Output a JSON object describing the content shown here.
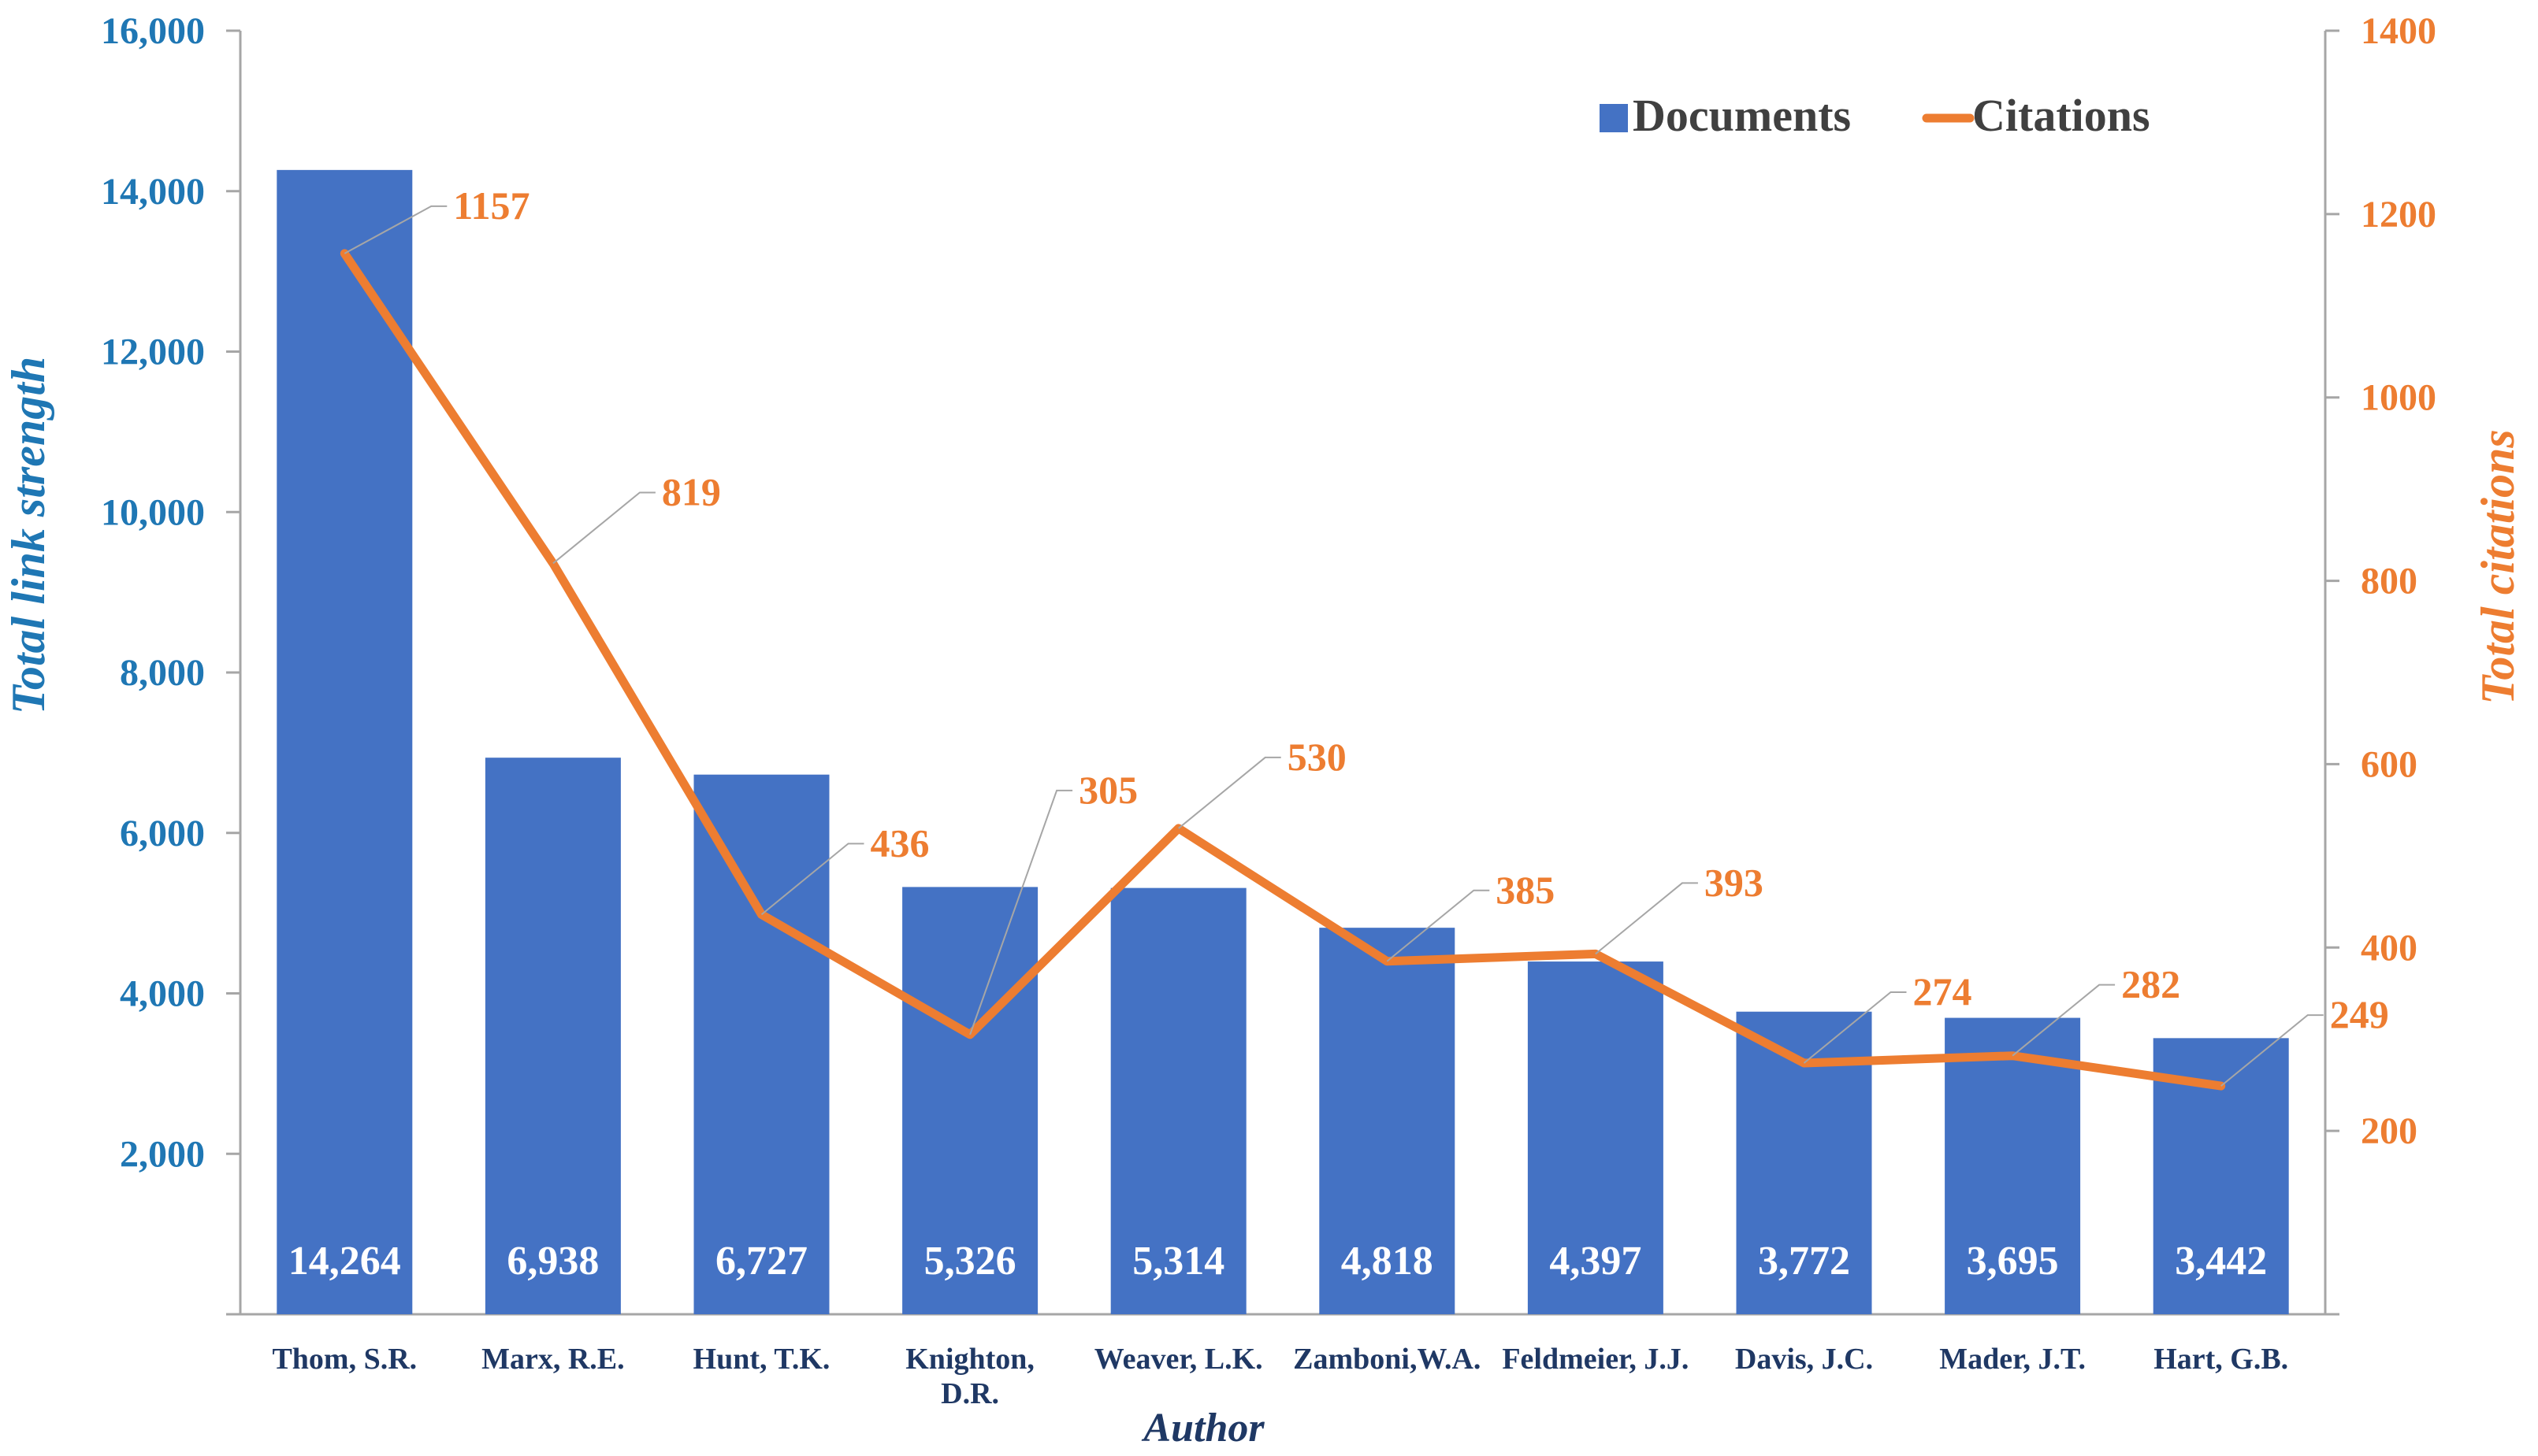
{
  "chart_data": {
    "type": "bar",
    "categories": [
      "Thom, S.R.",
      "Marx, R.E.",
      "Hunt, T.K.",
      "Knighton, D.R.",
      "Weaver, L.K.",
      "Zamboni,W.A.",
      "Feldmeier, J.J.",
      "Davis, J.C.",
      "Mader, J.T.",
      "Hart, G.B."
    ],
    "series": [
      {
        "name": "Documents",
        "type": "bar",
        "axis": "left",
        "color": "#4472C4",
        "values": [
          14264,
          6938,
          6727,
          5326,
          5314,
          4818,
          4397,
          3772,
          3695,
          3442
        ],
        "labels": [
          "14,264",
          "6,938",
          "6,727",
          "5,326",
          "5,314",
          "4,818",
          "4,397",
          "3,772",
          "3,695",
          "3,442"
        ]
      },
      {
        "name": "Citations",
        "type": "line",
        "axis": "right",
        "color": "#ED7D31",
        "values": [
          1157,
          819,
          436,
          305,
          530,
          385,
          393,
          274,
          282,
          249
        ],
        "labels": [
          "1157",
          "819",
          "436",
          "305",
          "530",
          "385",
          "393",
          "274",
          "282",
          "249"
        ]
      }
    ],
    "xlabel": "Author",
    "ylabel_left": "Total link strength",
    "ylabel_right": "Total citations",
    "ylim_left": [
      0,
      16000
    ],
    "ylim_right": [
      0,
      1400
    ],
    "yticks_left": [
      "2,000",
      "4,000",
      "6,000",
      "8,000",
      "10,000",
      "12,000",
      "14,000",
      "16,000"
    ],
    "yticks_right": [
      "200",
      "400",
      "600",
      "800",
      "1000",
      "1200",
      "1400"
    ],
    "legend_position": "top-right",
    "grid": false,
    "colors": {
      "left_axis": "#1F77B4",
      "right_axis": "#ED7D31",
      "bar": "#4472C4",
      "line": "#ED7D31",
      "leader": "#A6A6A6",
      "legend_text": "#404040",
      "category_text": "#1F3864"
    }
  }
}
